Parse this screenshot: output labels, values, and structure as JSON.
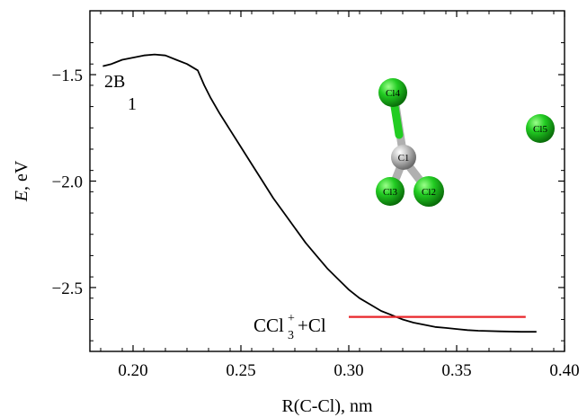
{
  "chart_data": {
    "type": "line",
    "title": "",
    "xlabel": "R(C-Cl), nm",
    "ylabel_italic": "E",
    "ylabel_rest": ", eV",
    "xlim": [
      0.18,
      0.4
    ],
    "ylim": [
      -2.8,
      -1.2
    ],
    "xticks": [
      0.2,
      0.25,
      0.3,
      0.35,
      0.4
    ],
    "xtick_labels": [
      "0.20",
      "0.25",
      "0.30",
      "0.35",
      "0.40"
    ],
    "yticks": [
      -1.5,
      -2.0,
      -2.5
    ],
    "ytick_labels": [
      "−1.5",
      "−2.0",
      "−2.5"
    ],
    "grid": false,
    "series": [
      {
        "color": "#000000",
        "x": [
          0.186,
          0.19,
          0.195,
          0.2,
          0.205,
          0.21,
          0.215,
          0.22,
          0.225,
          0.23,
          0.233,
          0.236,
          0.24,
          0.245,
          0.25,
          0.255,
          0.26,
          0.265,
          0.27,
          0.275,
          0.28,
          0.285,
          0.29,
          0.295,
          0.3,
          0.305,
          0.31,
          0.315,
          0.32,
          0.325,
          0.33,
          0.335,
          0.34,
          0.345,
          0.35,
          0.355,
          0.36,
          0.37,
          0.38,
          0.387
        ],
        "y": [
          -1.46,
          -1.45,
          -1.43,
          -1.42,
          -1.41,
          -1.405,
          -1.41,
          -1.43,
          -1.45,
          -1.48,
          -1.55,
          -1.61,
          -1.68,
          -1.76,
          -1.84,
          -1.92,
          -2.0,
          -2.08,
          -2.15,
          -2.22,
          -2.29,
          -2.35,
          -2.41,
          -2.46,
          -2.51,
          -2.55,
          -2.58,
          -2.61,
          -2.63,
          -2.65,
          -2.665,
          -2.675,
          -2.685,
          -2.69,
          -2.695,
          -2.7,
          -2.703,
          -2.706,
          -2.708,
          -2.708
        ]
      },
      {
        "color": "#e8272b",
        "x": [
          0.3,
          0.382
        ],
        "y": [
          -2.638,
          -2.638
        ]
      }
    ],
    "state_label_main": "2B",
    "state_label_sub": "1",
    "asymptote_label_main": "CCl",
    "asymptote_label_sub": "3",
    "asymptote_label_sup": "+",
    "asymptote_label_rest": "+Cl",
    "molecule": {
      "atom_color": "#22cc22",
      "center_color": "#b8b8b8",
      "atoms": [
        {
          "label": "Cl4"
        },
        {
          "label": "C1"
        },
        {
          "label": "Cl3"
        },
        {
          "label": "Cl2"
        },
        {
          "label": "Cl5"
        }
      ]
    }
  }
}
